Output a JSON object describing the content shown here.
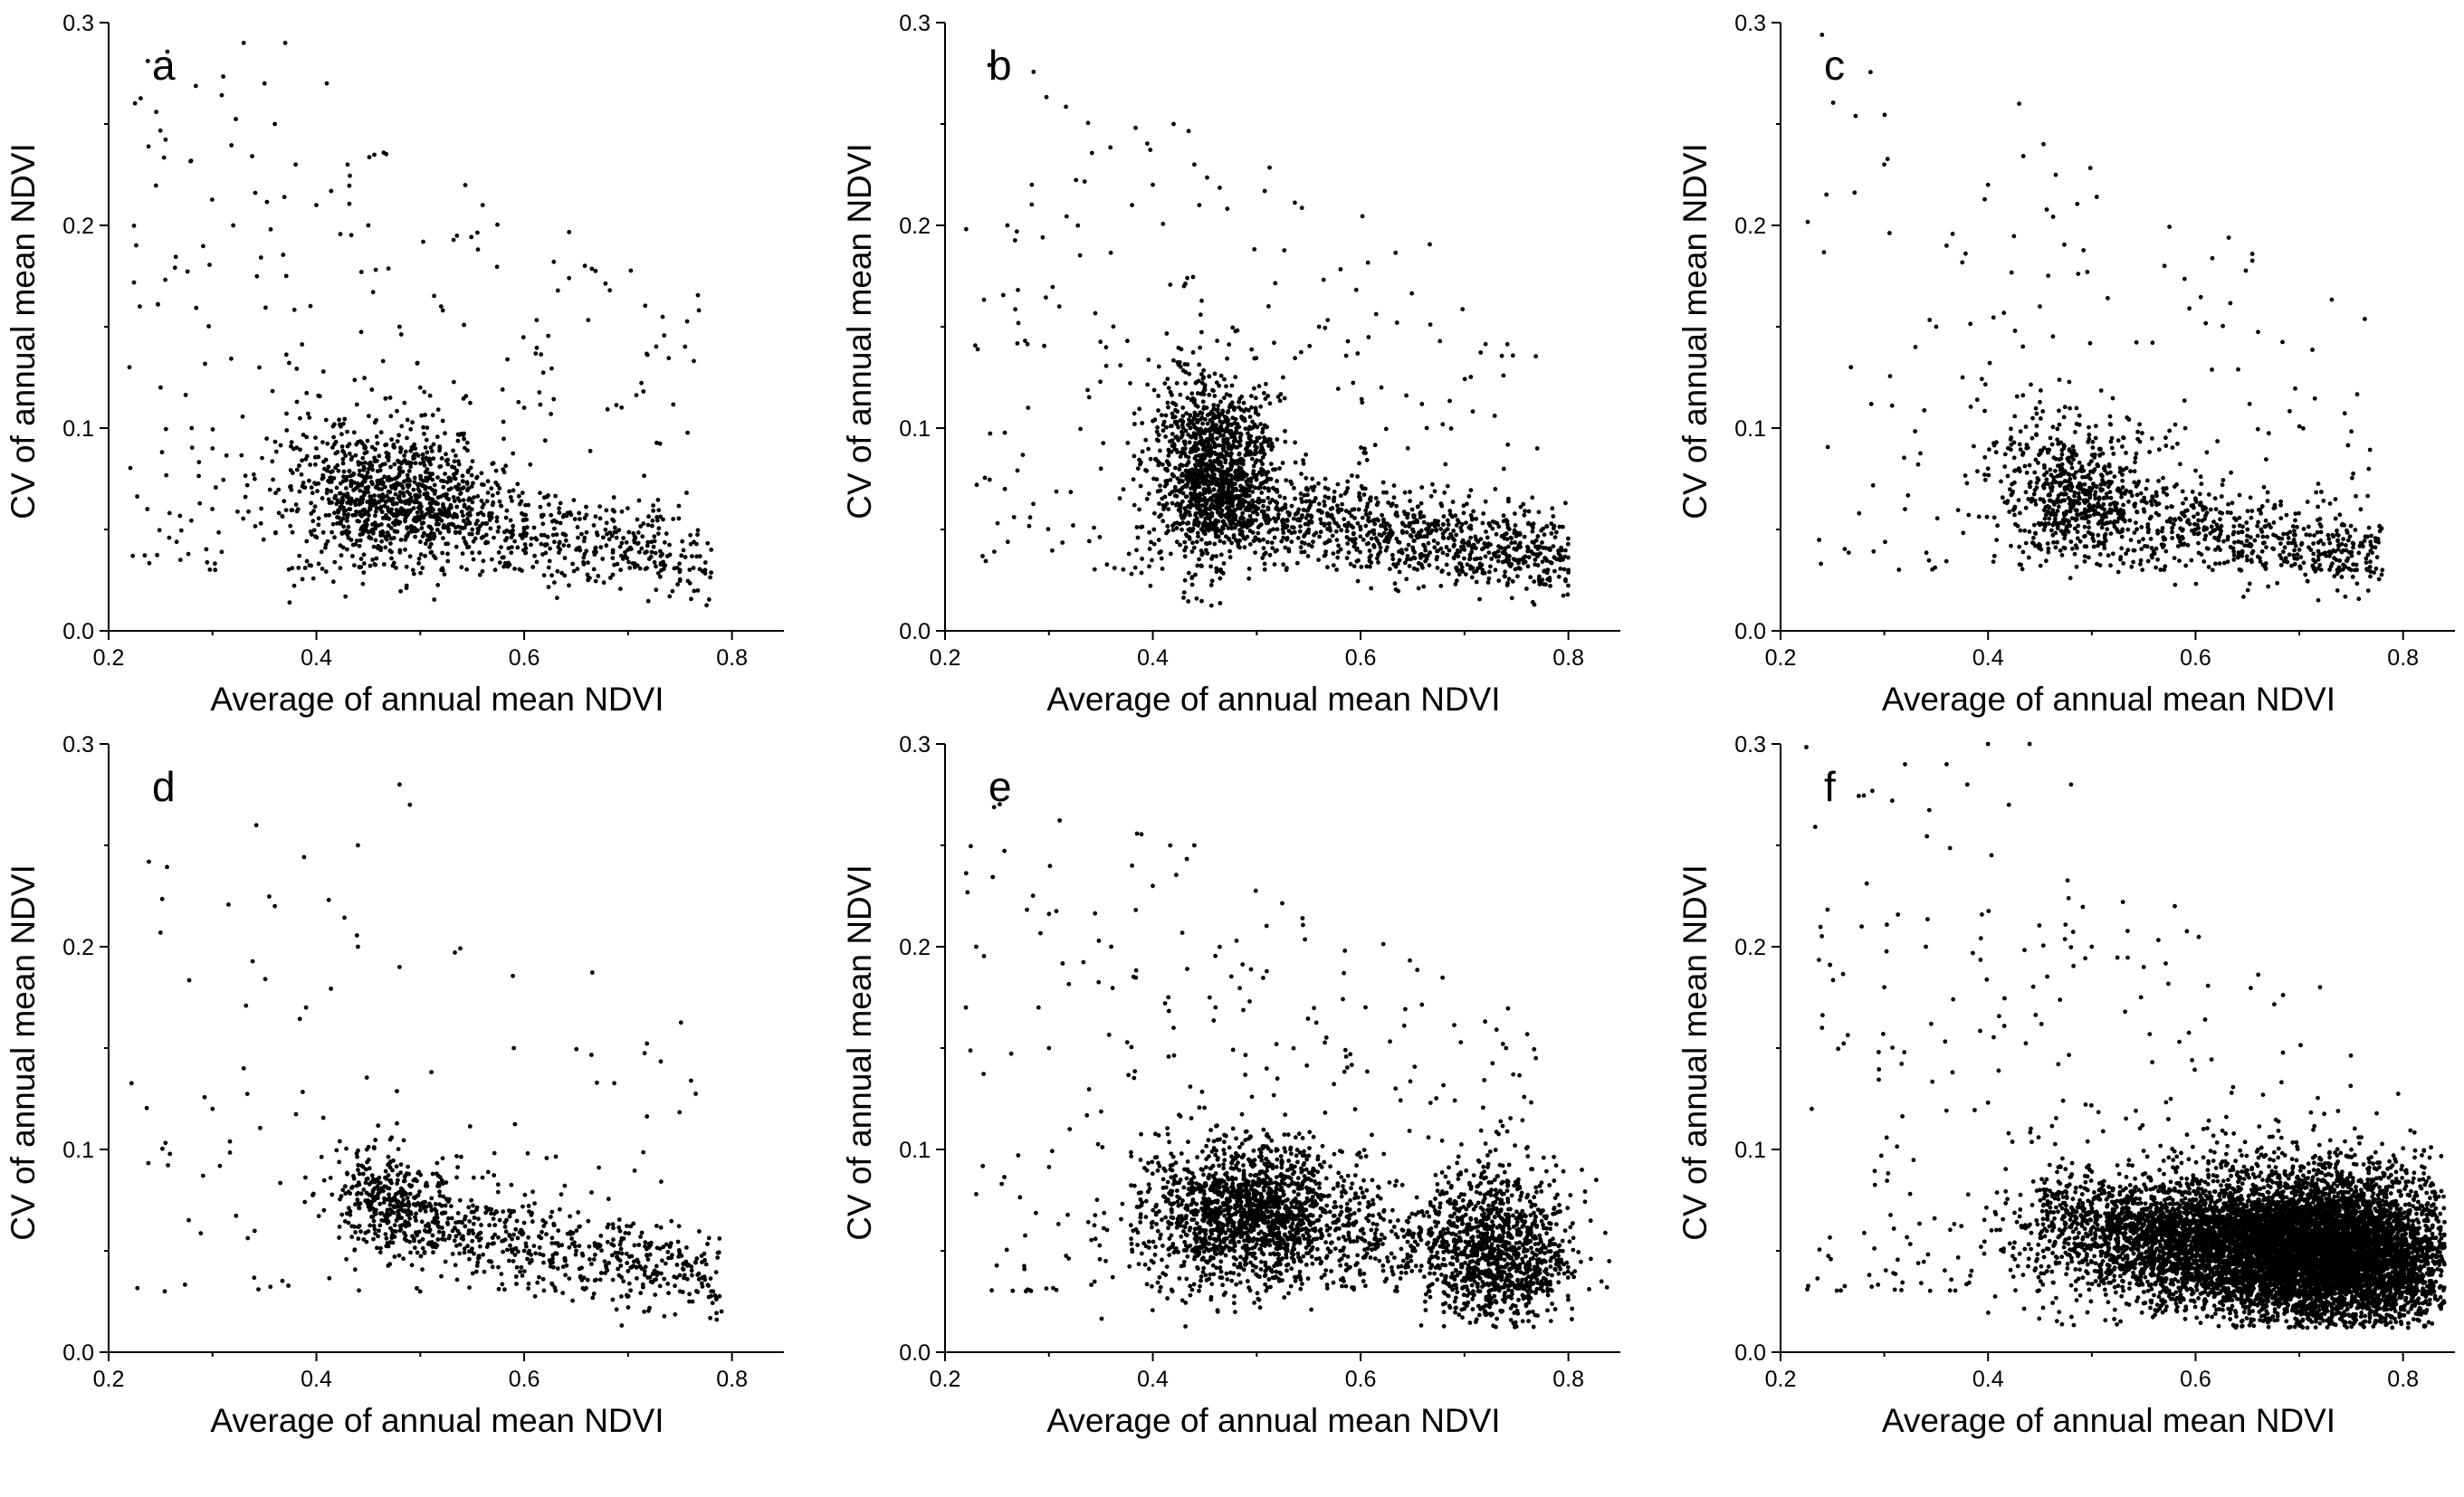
{
  "figure": {
    "mark_color": "#000000",
    "background": "#ffffff"
  },
  "chart_data": [
    {
      "type": "scatter",
      "panel": "a",
      "xlabel": "Average of annual mean NDVI",
      "ylabel": "CV of annual mean NDVI",
      "xlim": [
        0.2,
        0.85
      ],
      "ylim": [
        0.0,
        0.3
      ],
      "x_ticks": [
        "0.2",
        "0.4",
        "0.6",
        "0.8"
      ],
      "y_ticks": [
        "0.0",
        "0.1",
        "0.2",
        "0.3"
      ],
      "grid": false,
      "point_count": 1600,
      "points_sample": [
        [
          0.22,
          0.13
        ],
        [
          0.23,
          0.16
        ],
        [
          0.25,
          0.12
        ],
        [
          0.28,
          0.1
        ],
        [
          0.3,
          0.09
        ],
        [
          0.32,
          0.2
        ],
        [
          0.33,
          0.29
        ],
        [
          0.35,
          0.27
        ],
        [
          0.36,
          0.25
        ],
        [
          0.37,
          0.29
        ],
        [
          0.38,
          0.23
        ],
        [
          0.4,
          0.21
        ],
        [
          0.41,
          0.27
        ],
        [
          0.43,
          0.23
        ],
        [
          0.45,
          0.2
        ],
        [
          0.48,
          0.15
        ],
        [
          0.5,
          0.12
        ],
        [
          0.52,
          0.16
        ],
        [
          0.56,
          0.21
        ],
        [
          0.6,
          0.11
        ],
        [
          0.46,
          0.07
        ],
        [
          0.5,
          0.06
        ],
        [
          0.55,
          0.05
        ],
        [
          0.6,
          0.05
        ],
        [
          0.65,
          0.04
        ],
        [
          0.7,
          0.04
        ],
        [
          0.75,
          0.03
        ],
        [
          0.78,
          0.04
        ],
        [
          0.74,
          0.017
        ],
        [
          0.4,
          0.09
        ]
      ]
    },
    {
      "type": "scatter",
      "panel": "b",
      "xlabel": "Average of annual mean NDVI",
      "ylabel": "CV of annual mean NDVI",
      "xlim": [
        0.2,
        0.85
      ],
      "ylim": [
        0.0,
        0.3
      ],
      "x_ticks": [
        "0.2",
        "0.4",
        "0.6",
        "0.8"
      ],
      "y_ticks": [
        "0.0",
        "0.1",
        "0.2",
        "0.3"
      ],
      "grid": false,
      "point_count": 2400,
      "points_sample": [
        [
          0.26,
          0.2
        ],
        [
          0.28,
          0.11
        ],
        [
          0.31,
          0.16
        ],
        [
          0.35,
          0.08
        ],
        [
          0.38,
          0.21
        ],
        [
          0.4,
          0.22
        ],
        [
          0.42,
          0.25
        ],
        [
          0.44,
          0.23
        ],
        [
          0.43,
          0.17
        ],
        [
          0.46,
          0.08
        ],
        [
          0.48,
          0.07
        ],
        [
          0.5,
          0.06
        ],
        [
          0.55,
          0.05
        ],
        [
          0.6,
          0.05
        ],
        [
          0.65,
          0.05
        ],
        [
          0.7,
          0.04
        ],
        [
          0.75,
          0.04
        ],
        [
          0.78,
          0.03
        ],
        [
          0.8,
          0.03
        ],
        [
          0.77,
          0.09
        ],
        [
          0.56,
          0.15
        ],
        [
          0.62,
          0.12
        ],
        [
          0.45,
          0.12
        ]
      ]
    },
    {
      "type": "scatter",
      "panel": "c",
      "xlabel": "Average of annual mean NDVI",
      "ylabel": "CV of annual mean NDVI",
      "xlim": [
        0.2,
        0.85
      ],
      "ylim": [
        0.0,
        0.3
      ],
      "x_ticks": [
        "0.2",
        "0.4",
        "0.6",
        "0.8"
      ],
      "y_ticks": [
        "0.0",
        "0.1",
        "0.2",
        "0.3"
      ],
      "grid": false,
      "point_count": 1300,
      "points_sample": [
        [
          0.3,
          0.23
        ],
        [
          0.33,
          0.14
        ],
        [
          0.35,
          0.15
        ],
        [
          0.36,
          0.19
        ],
        [
          0.4,
          0.22
        ],
        [
          0.43,
          0.26
        ],
        [
          0.45,
          0.16
        ],
        [
          0.47,
          0.08
        ],
        [
          0.5,
          0.07
        ],
        [
          0.55,
          0.06
        ],
        [
          0.57,
          0.18
        ],
        [
          0.6,
          0.05
        ],
        [
          0.65,
          0.05
        ],
        [
          0.7,
          0.04
        ],
        [
          0.75,
          0.03
        ],
        [
          0.78,
          0.03
        ],
        [
          0.32,
          0.06
        ],
        [
          0.4,
          0.08
        ]
      ]
    },
    {
      "type": "scatter",
      "panel": "d",
      "xlabel": "Average of annual mean NDVI",
      "ylabel": "CV of annual mean NDVI",
      "xlim": [
        0.2,
        0.85
      ],
      "ylim": [
        0.0,
        0.3
      ],
      "x_ticks": [
        "0.2",
        "0.4",
        "0.6",
        "0.8"
      ],
      "y_ticks": [
        "0.0",
        "0.1",
        "0.2",
        "0.3"
      ],
      "grid": false,
      "point_count": 1000,
      "points_sample": [
        [
          0.3,
          0.12
        ],
        [
          0.33,
          0.14
        ],
        [
          0.36,
          0.22
        ],
        [
          0.39,
          0.17
        ],
        [
          0.44,
          0.25
        ],
        [
          0.44,
          0.2
        ],
        [
          0.48,
          0.28
        ],
        [
          0.49,
          0.27
        ],
        [
          0.48,
          0.19
        ],
        [
          0.46,
          0.08
        ],
        [
          0.5,
          0.07
        ],
        [
          0.55,
          0.06
        ],
        [
          0.6,
          0.05
        ],
        [
          0.65,
          0.05
        ],
        [
          0.7,
          0.04
        ],
        [
          0.75,
          0.03
        ],
        [
          0.78,
          0.03
        ],
        [
          0.59,
          0.15
        ]
      ]
    },
    {
      "type": "scatter",
      "panel": "e",
      "xlabel": "Average of annual mean NDVI",
      "ylabel": "CV of annual mean NDVI",
      "xlim": [
        0.2,
        0.85
      ],
      "ylim": [
        0.0,
        0.3
      ],
      "x_ticks": [
        "0.2",
        "0.4",
        "0.6",
        "0.8"
      ],
      "y_ticks": [
        "0.0",
        "0.1",
        "0.2",
        "0.3"
      ],
      "grid": false,
      "point_count": 3200,
      "points_sample": [
        [
          0.22,
          0.17
        ],
        [
          0.23,
          0.2
        ],
        [
          0.29,
          0.17
        ],
        [
          0.3,
          0.15
        ],
        [
          0.32,
          0.11
        ],
        [
          0.36,
          0.2
        ],
        [
          0.38,
          0.24
        ],
        [
          0.4,
          0.23
        ],
        [
          0.44,
          0.25
        ],
        [
          0.42,
          0.16
        ],
        [
          0.47,
          0.08
        ],
        [
          0.5,
          0.07
        ],
        [
          0.55,
          0.06
        ],
        [
          0.6,
          0.06
        ],
        [
          0.65,
          0.05
        ],
        [
          0.7,
          0.05
        ],
        [
          0.72,
          0.04
        ],
        [
          0.75,
          0.04
        ],
        [
          0.74,
          0.15
        ],
        [
          0.78,
          0.03
        ]
      ]
    },
    {
      "type": "scatter",
      "panel": "f",
      "xlabel": "Average of annual mean NDVI",
      "ylabel": "CV of annual mean NDVI",
      "xlim": [
        0.2,
        0.85
      ],
      "ylim": [
        0.0,
        0.3
      ],
      "x_ticks": [
        "0.2",
        "0.4",
        "0.6",
        "0.8"
      ],
      "y_ticks": [
        "0.0",
        "0.1",
        "0.2",
        "0.3"
      ],
      "grid": false,
      "point_count": 9000,
      "points_sample": [
        [
          0.23,
          0.12
        ],
        [
          0.24,
          0.16
        ],
        [
          0.3,
          0.18
        ],
        [
          0.32,
          0.29
        ],
        [
          0.34,
          0.2
        ],
        [
          0.36,
          0.29
        ],
        [
          0.38,
          0.28
        ],
        [
          0.4,
          0.3
        ],
        [
          0.42,
          0.27
        ],
        [
          0.44,
          0.3
        ],
        [
          0.48,
          0.28
        ],
        [
          0.5,
          0.2
        ],
        [
          0.55,
          0.19
        ],
        [
          0.58,
          0.22
        ],
        [
          0.6,
          0.06
        ],
        [
          0.65,
          0.05
        ],
        [
          0.7,
          0.05
        ],
        [
          0.72,
          0.18
        ],
        [
          0.75,
          0.04
        ],
        [
          0.78,
          0.03
        ],
        [
          0.82,
          0.02
        ],
        [
          0.45,
          0.08
        ]
      ]
    }
  ]
}
